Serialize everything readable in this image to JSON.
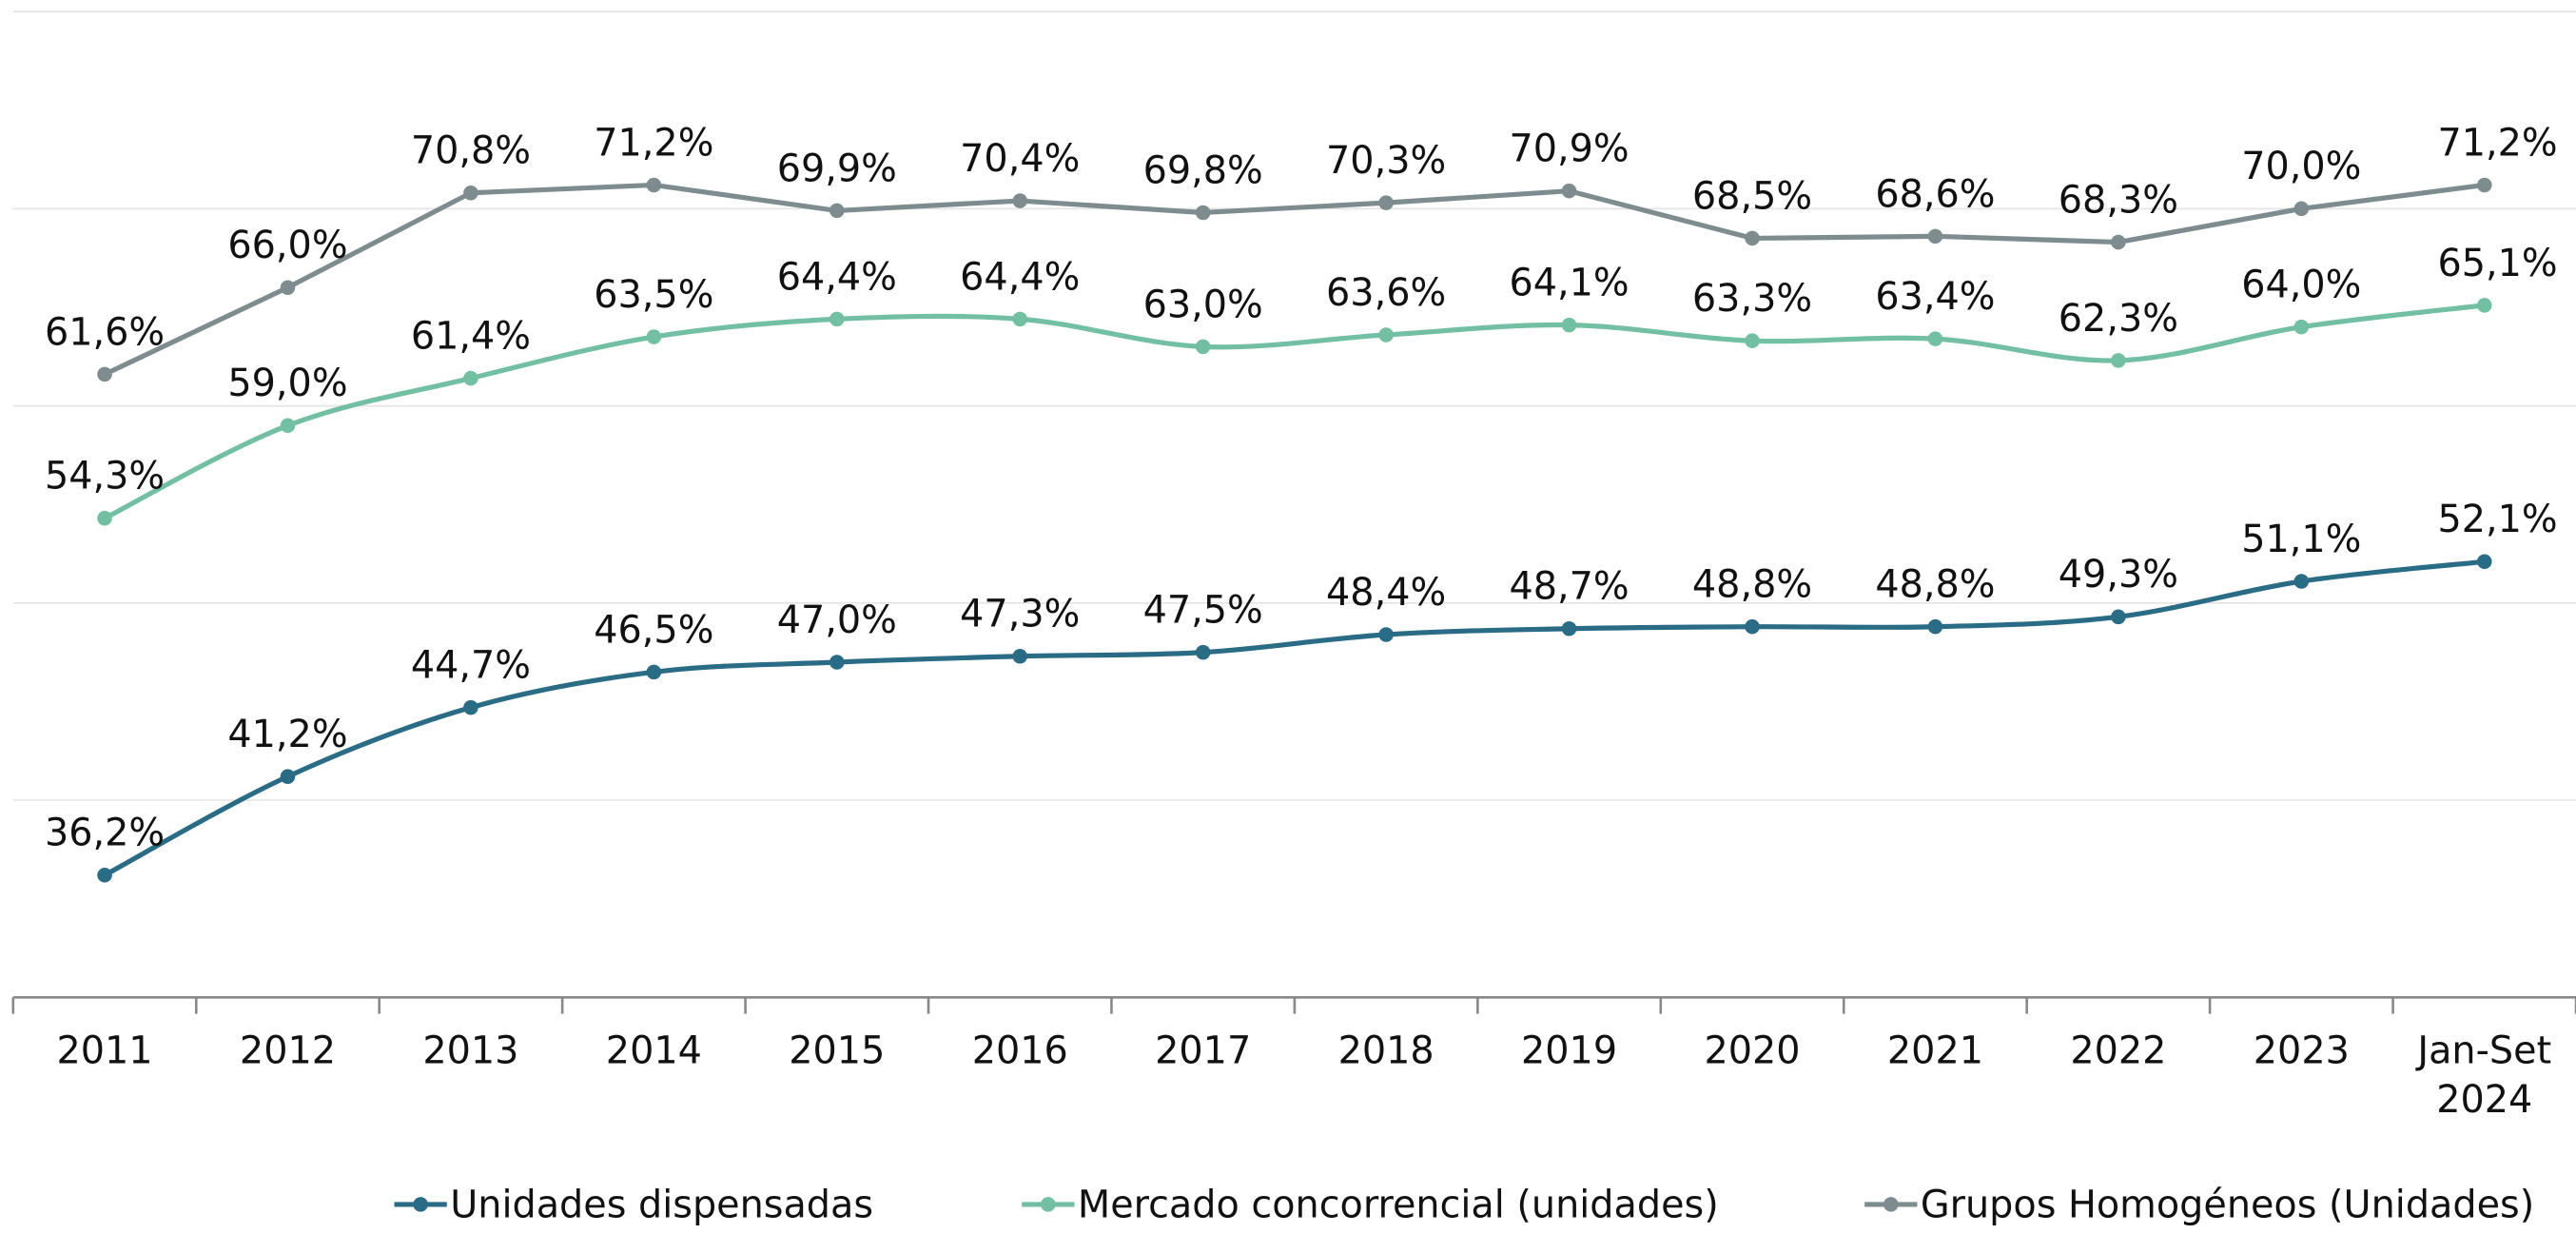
{
  "chart_data": {
    "type": "line",
    "categories": [
      "2011",
      "2012",
      "2013",
      "2014",
      "2015",
      "2016",
      "2017",
      "2018",
      "2019",
      "2020",
      "2021",
      "2022",
      "2023",
      "Jan-Set 2024"
    ],
    "ylim": [
      30,
      80
    ],
    "yticks": [
      30,
      40,
      50,
      60,
      70,
      80
    ],
    "grid": true,
    "legend": "bottom",
    "series": [
      {
        "name": "Unidades dispensadas",
        "color": "#2a6b85",
        "smooth": true,
        "values": [
          36.2,
          41.2,
          44.7,
          46.5,
          47.0,
          47.3,
          47.5,
          48.4,
          48.7,
          48.8,
          48.8,
          49.3,
          51.1,
          52.1
        ],
        "value_labels": [
          "36,2%",
          "41,2%",
          "44,7%",
          "46,5%",
          "47,0%",
          "47,3%",
          "47,5%",
          "48,4%",
          "48,7%",
          "48,8%",
          "48,8%",
          "49,3%",
          "51,1%",
          "52,1%"
        ]
      },
      {
        "name": "Mercado concorrencial (unidades)",
        "color": "#72bfa4",
        "smooth": true,
        "values": [
          54.3,
          59.0,
          61.4,
          63.5,
          64.4,
          64.4,
          63.0,
          63.6,
          64.1,
          63.3,
          63.4,
          62.3,
          64.0,
          65.1
        ],
        "value_labels": [
          "54,3%",
          "59,0%",
          "61,4%",
          "63,5%",
          "64,4%",
          "64,4%",
          "63,0%",
          "63,6%",
          "64,1%",
          "63,3%",
          "63,4%",
          "62,3%",
          "64,0%",
          "65,1%"
        ]
      },
      {
        "name": "Grupos Homogéneos (Unidades)",
        "color": "#7f8c8f",
        "smooth": false,
        "values": [
          61.6,
          66.0,
          70.8,
          71.2,
          69.9,
          70.4,
          69.8,
          70.3,
          70.9,
          68.5,
          68.6,
          68.3,
          70.0,
          71.2
        ],
        "value_labels": [
          "61,6%",
          "66,0%",
          "70,8%",
          "71,2%",
          "69,9%",
          "70,4%",
          "69,8%",
          "70,3%",
          "70,9%",
          "68,5%",
          "68,6%",
          "68,3%",
          "70,0%",
          "71,2%"
        ]
      }
    ]
  }
}
